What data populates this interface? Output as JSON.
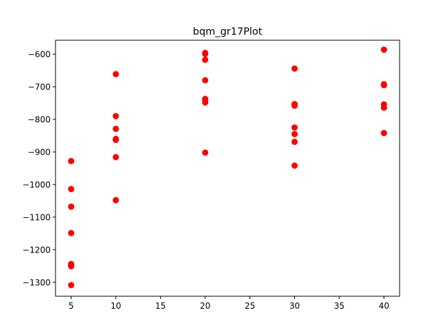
{
  "chart_data": {
    "type": "scatter",
    "title": "bqm_gr17Plot",
    "xlabel": "",
    "ylabel": "",
    "xlim": [
      3.25,
      41.75
    ],
    "ylim": [
      -1343,
      -557
    ],
    "x_ticks": [
      5,
      10,
      15,
      20,
      25,
      30,
      35,
      40
    ],
    "y_ticks": [
      -600,
      -700,
      -800,
      -900,
      -1000,
      -1100,
      -1200,
      -1300
    ],
    "x_tick_labels": [
      "5",
      "10",
      "15",
      "20",
      "25",
      "30",
      "35",
      "40"
    ],
    "y_tick_labels": [
      "−600",
      "−700",
      "−800",
      "−900",
      "−1000",
      "−1100",
      "−1200",
      "−1300"
    ],
    "grid": false,
    "marker_color": "#ff0000",
    "series": [
      {
        "points": [
          [
            5,
            -928
          ],
          [
            5,
            -1014
          ],
          [
            5,
            -1068
          ],
          [
            5,
            -1149
          ],
          [
            5,
            -1244
          ],
          [
            5,
            -1251
          ],
          [
            5,
            -1309
          ],
          [
            10,
            -661
          ],
          [
            10,
            -790
          ],
          [
            10,
            -829
          ],
          [
            10,
            -860
          ],
          [
            10,
            -863
          ],
          [
            10,
            -916
          ],
          [
            10,
            -1048
          ],
          [
            20,
            -596
          ],
          [
            20,
            -599
          ],
          [
            20,
            -617
          ],
          [
            20,
            -680
          ],
          [
            20,
            -737
          ],
          [
            20,
            -742
          ],
          [
            20,
            -748
          ],
          [
            20,
            -902
          ],
          [
            30,
            -644
          ],
          [
            30,
            -753
          ],
          [
            30,
            -758
          ],
          [
            30,
            -825
          ],
          [
            30,
            -845
          ],
          [
            30,
            -869
          ],
          [
            30,
            -942
          ],
          [
            40,
            -586
          ],
          [
            40,
            -692
          ],
          [
            40,
            -695
          ],
          [
            40,
            -754
          ],
          [
            40,
            -764
          ],
          [
            40,
            -842
          ]
        ]
      }
    ]
  }
}
